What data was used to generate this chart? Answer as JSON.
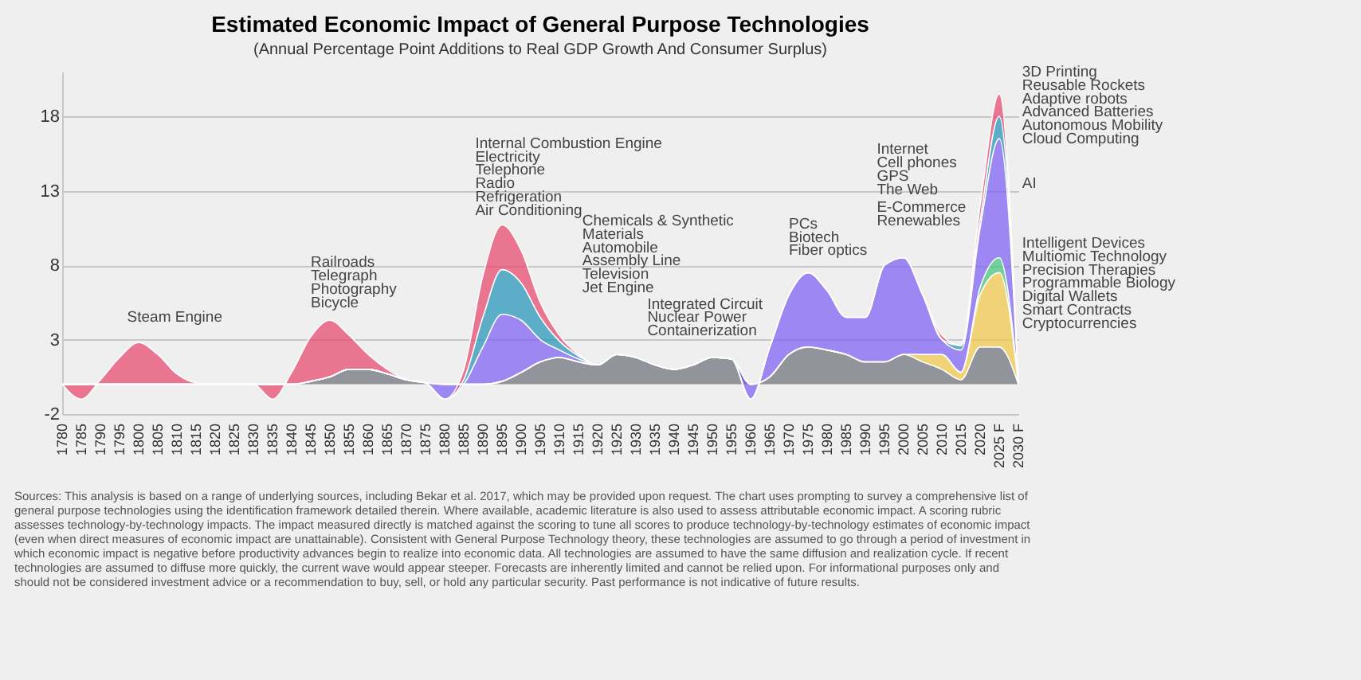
{
  "chart_data": {
    "type": "area",
    "stacked": true,
    "title": "Estimated Economic Impact of General Purpose Technologies",
    "subtitle": "(Annual Percentage Point Additions to Real GDP Growth And Consumer Surplus)",
    "x": [
      1780,
      1785,
      1790,
      1795,
      1800,
      1805,
      1810,
      1815,
      1820,
      1825,
      1830,
      1835,
      1840,
      1845,
      1850,
      1855,
      1860,
      1865,
      1870,
      1875,
      1880,
      1885,
      1890,
      1895,
      1900,
      1905,
      1910,
      1915,
      1920,
      1925,
      1930,
      1935,
      1940,
      1945,
      1950,
      1955,
      1960,
      1965,
      1970,
      1975,
      1980,
      1985,
      1990,
      1995,
      2000,
      2005,
      2010,
      2015,
      2020,
      2025,
      2030
    ],
    "series": [
      {
        "color": "#6b6e78",
        "values": [
          0,
          0,
          0,
          0,
          0,
          0,
          0,
          0,
          0,
          0,
          0,
          0,
          0,
          0.2,
          0.5,
          1,
          1,
          0.7,
          0.3,
          0.1,
          0,
          0,
          0,
          0.2,
          0.8,
          1.5,
          1.8,
          1.5,
          1.3,
          2,
          1.8,
          1.3,
          1,
          1.3,
          1.8,
          1.7,
          0,
          0.5,
          2,
          2.5,
          2.3,
          2,
          1.5,
          1.5,
          2,
          1.5,
          1,
          0.3,
          2.5,
          2.5,
          0
        ]
      },
      {
        "color": "#f2c744",
        "values": [
          0,
          0,
          0,
          0,
          0,
          0,
          0,
          0,
          0,
          0,
          0,
          0,
          0,
          0,
          0,
          0,
          0,
          0,
          0,
          0,
          0,
          0,
          0,
          0,
          0,
          0,
          0,
          0,
          0,
          0,
          0,
          0,
          0,
          0,
          0,
          0,
          0,
          0,
          0,
          0,
          0,
          0,
          0,
          0,
          0,
          0.5,
          1,
          0.5,
          3.5,
          5,
          0
        ]
      },
      {
        "color": "#3ec47a",
        "values": [
          0,
          0,
          0,
          0,
          0,
          0,
          0,
          0,
          0,
          0,
          0,
          0,
          0,
          0,
          0,
          0,
          0,
          0,
          0,
          0,
          0,
          0,
          0,
          0,
          0,
          0,
          0,
          0,
          0,
          0,
          0,
          0,
          0,
          0,
          0,
          0,
          0,
          0,
          0,
          0,
          0,
          0,
          0,
          0,
          0,
          0,
          0,
          0,
          0.5,
          1,
          0
        ]
      },
      {
        "color": "#7b5cf5",
        "values": [
          0,
          0,
          0,
          0,
          0,
          0,
          0,
          0,
          0,
          0,
          0,
          0,
          0,
          0,
          0,
          0,
          0,
          0,
          0,
          0,
          -1,
          0,
          2.5,
          4.5,
          3.5,
          1.5,
          0.5,
          0.2,
          0,
          0,
          0,
          0,
          0,
          0,
          0,
          0,
          -1,
          2,
          4,
          5,
          4,
          2.5,
          3,
          6.5,
          6.5,
          4,
          1,
          1.5,
          4,
          8,
          0
        ]
      },
      {
        "color": "#1e93b8",
        "values": [
          0,
          0,
          0,
          0,
          0,
          0,
          0,
          0,
          0,
          0,
          0,
          0,
          0,
          0,
          0,
          0,
          0,
          0,
          0,
          0,
          0,
          0.3,
          2,
          3,
          2.5,
          1.5,
          0.6,
          0.2,
          0,
          0,
          0,
          0,
          0,
          0,
          0,
          0,
          0,
          0,
          0,
          0,
          0,
          0,
          0,
          0,
          0,
          0,
          0,
          0.3,
          0.5,
          1.5,
          0
        ]
      },
      {
        "color": "#e8426a",
        "values": [
          0,
          -1,
          0.3,
          1.8,
          2.8,
          2,
          0.7,
          0.1,
          0,
          0,
          0,
          -1,
          0.8,
          3,
          3.8,
          2.3,
          1,
          0.3,
          0,
          0,
          0,
          0.7,
          2.8,
          3,
          2.2,
          1,
          0.4,
          0.1,
          0,
          0,
          0,
          0,
          0,
          0,
          0,
          0,
          0,
          0,
          0,
          0,
          0,
          0,
          0,
          0,
          0,
          0,
          0.3,
          0,
          1,
          1.5,
          0
        ]
      }
    ],
    "xlim": [
      1780,
      2030
    ],
    "xticks": [
      1780,
      1785,
      1790,
      1795,
      1800,
      1805,
      1810,
      1815,
      1820,
      1825,
      1830,
      1835,
      1840,
      1845,
      1850,
      1855,
      1860,
      1865,
      1870,
      1875,
      1880,
      1885,
      1890,
      1895,
      1900,
      1905,
      1910,
      1915,
      1920,
      1925,
      1930,
      1935,
      1940,
      1945,
      1950,
      1955,
      1960,
      1965,
      1970,
      1975,
      1980,
      1985,
      1990,
      1995,
      2000,
      2005,
      2010,
      2015,
      2020,
      {
        "value": 2025,
        "label": "2025 F"
      },
      {
        "value": 2030,
        "label": "2030 F"
      }
    ],
    "ylim": [
      -2,
      21
    ],
    "yticks": [
      -2,
      3,
      8,
      13,
      18
    ],
    "grid": "y",
    "annotations": [
      "Steam Engine",
      "Railroads",
      "Telegraph",
      "Photography",
      "Bicycle",
      "Internal Combustion Engine",
      "Electricity",
      "Telephone",
      "Radio",
      "Refrigeration",
      "Air Conditioning",
      "Chemicals & Synthetic",
      "Materials",
      "Automobile",
      "Assembly Line",
      "Television",
      "Jet Engine",
      "Integrated Circuit",
      "Nuclear Power",
      "Containerization",
      "PCs",
      "Biotech",
      "Fiber optics",
      "Internet",
      "Cell phones",
      "GPS",
      "The Web",
      "E-Commerce",
      "Renewables",
      "3D Printing",
      "Reusable Rockets",
      "Adaptive robots",
      "Advanced Batteries",
      "Autonomous Mobility",
      "Cloud Computing",
      "AI",
      "Intelligent Devices",
      "Multiomic Technology",
      "Precision Therapies",
      "Programmable Biology",
      "Digital Wallets",
      "Smart Contracts",
      "Cryptocurrencies",
      "Sources: This analysis is based on a range of underlying sources, including Bekar et al. 2017, which may be provided upon request. The chart uses prompting to survey a comprehensive list of general purpose technologies using the identification framework detailed therein. Where available, academic literature is also used to assess attributable economic impact. A scoring rubric assesses technology-by-technology impacts. The impact measured directly is matched against the scoring to tune all scores to produce technology-by-technology estimates of economic impact (even when direct measures of economic impact are unattainable). Consistent with General Purpose Technology theory, these technologies are assumed to go through a period of investment in which economic impact is negative before productivity advances begin to realize into economic data. All technologies are assumed to have the same diffusion and realization cycle. If recent technologies are assumed to diffuse more quickly, the current wave would appear steeper. Forecasts are inherently limited and cannot be relied upon. For informational purposes only and should not be considered investment advice or a recommendation to buy, sell, or hold any particular security. Past performance is not indicative of future results."
    ]
  }
}
